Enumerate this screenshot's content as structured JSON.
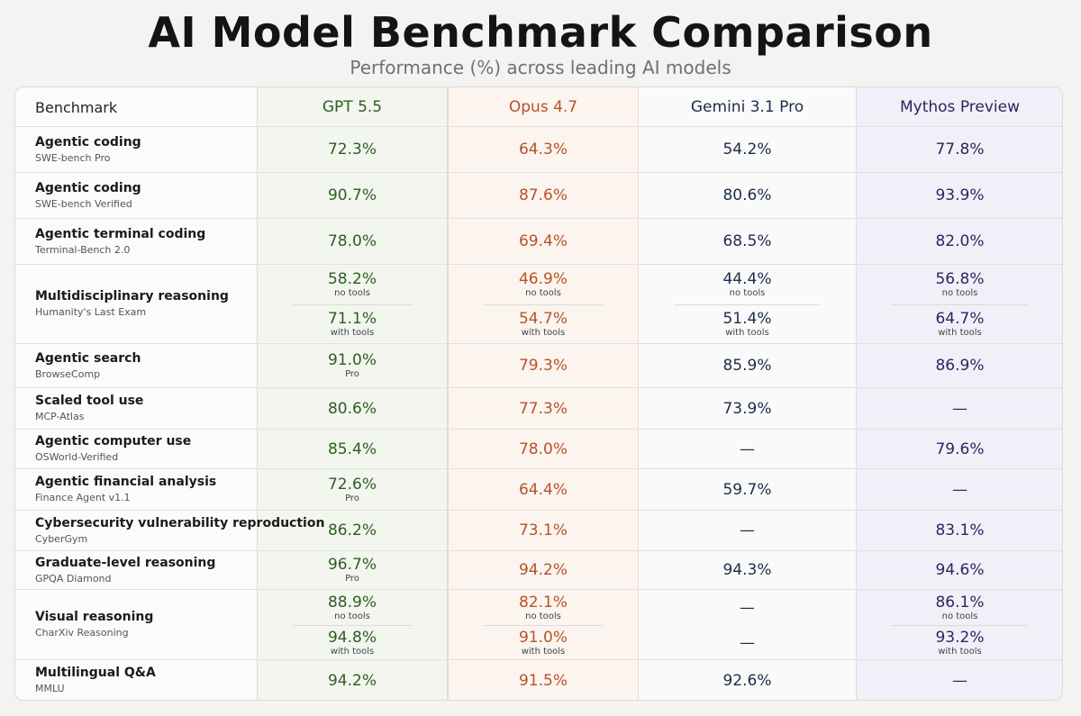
{
  "header": {
    "title": "AI Model Benchmark Comparison",
    "subtitle": "Performance (%) across leading AI models"
  },
  "colors": {
    "gpt": "#2f5d23",
    "opus": "#b5532b",
    "gemini": "#1e2b4a",
    "mythos": "#2b2660"
  },
  "chart_data": {
    "type": "table",
    "title": "AI Model Benchmark Comparison",
    "subtitle": "Performance (%) across leading AI models",
    "columns": [
      "Benchmark",
      "GPT 5.5",
      "Opus 4.7",
      "Gemini 3.1 Pro",
      "Mythos Preview"
    ],
    "rows": [
      {
        "name": "Agentic coding",
        "sub": "SWE-bench Pro",
        "values": [
          {
            "v": "72.3%"
          },
          {
            "v": "64.3%"
          },
          {
            "v": "54.2%"
          },
          {
            "v": "77.8%"
          }
        ]
      },
      {
        "name": "Agentic coding",
        "sub": "SWE-bench Verified",
        "values": [
          {
            "v": "90.7%"
          },
          {
            "v": "87.6%"
          },
          {
            "v": "80.6%"
          },
          {
            "v": "93.9%"
          }
        ]
      },
      {
        "name": "Agentic terminal coding",
        "sub": "Terminal-Bench 2.0",
        "values": [
          {
            "v": "78.0%"
          },
          {
            "v": "69.4%"
          },
          {
            "v": "68.5%"
          },
          {
            "v": "82.0%"
          }
        ]
      },
      {
        "name": "Multidisciplinary reasoning",
        "sub": "Humanity's Last Exam",
        "values": [
          {
            "pair": [
              {
                "v": "58.2%",
                "note": "no tools"
              },
              {
                "v": "71.1%",
                "note": "with tools"
              }
            ]
          },
          {
            "pair": [
              {
                "v": "46.9%",
                "note": "no tools"
              },
              {
                "v": "54.7%",
                "note": "with tools"
              }
            ]
          },
          {
            "pair": [
              {
                "v": "44.4%",
                "note": "no tools"
              },
              {
                "v": "51.4%",
                "note": "with tools"
              }
            ]
          },
          {
            "pair": [
              {
                "v": "56.8%",
                "note": "no tools"
              },
              {
                "v": "64.7%",
                "note": "with tools"
              }
            ]
          }
        ]
      },
      {
        "name": "Agentic search",
        "sub": "BrowseComp",
        "values": [
          {
            "v": "91.0%",
            "note": "Pro"
          },
          {
            "v": "79.3%"
          },
          {
            "v": "85.9%"
          },
          {
            "v": "86.9%"
          }
        ]
      },
      {
        "name": "Scaled tool use",
        "sub": "MCP-Atlas",
        "values": [
          {
            "v": "80.6%"
          },
          {
            "v": "77.3%"
          },
          {
            "v": "73.9%"
          },
          {
            "v": "—"
          }
        ]
      },
      {
        "name": "Agentic computer use",
        "sub": "OSWorld-Verified",
        "values": [
          {
            "v": "85.4%"
          },
          {
            "v": "78.0%"
          },
          {
            "v": "—"
          },
          {
            "v": "79.6%"
          }
        ]
      },
      {
        "name": "Agentic financial analysis",
        "sub": "Finance Agent v1.1",
        "values": [
          {
            "v": "72.6%",
            "note": "Pro"
          },
          {
            "v": "64.4%"
          },
          {
            "v": "59.7%"
          },
          {
            "v": "—"
          }
        ]
      },
      {
        "name": "Cybersecurity vulnerability reproduction",
        "sub": "CyberGym",
        "values": [
          {
            "v": "86.2%"
          },
          {
            "v": "73.1%"
          },
          {
            "v": "—"
          },
          {
            "v": "83.1%"
          }
        ]
      },
      {
        "name": "Graduate-level reasoning",
        "sub": "GPQA Diamond",
        "values": [
          {
            "v": "96.7%",
            "note": "Pro"
          },
          {
            "v": "94.2%"
          },
          {
            "v": "94.3%"
          },
          {
            "v": "94.6%"
          }
        ]
      },
      {
        "name": "Visual reasoning",
        "sub": "CharXiv Reasoning",
        "values": [
          {
            "pair": [
              {
                "v": "88.9%",
                "note": "no tools"
              },
              {
                "v": "94.8%",
                "note": "with tools"
              }
            ]
          },
          {
            "pair": [
              {
                "v": "82.1%",
                "note": "no tools"
              },
              {
                "v": "91.0%",
                "note": "with tools"
              }
            ]
          },
          {
            "pair": [
              {
                "v": "—",
                "note": ""
              },
              {
                "v": "—",
                "note": ""
              }
            ]
          },
          {
            "pair": [
              {
                "v": "86.1%",
                "note": "no tools"
              },
              {
                "v": "93.2%",
                "note": "with tools"
              }
            ]
          }
        ]
      },
      {
        "name": "Multilingual Q&A",
        "sub": "MMLU",
        "values": [
          {
            "v": "94.2%"
          },
          {
            "v": "91.5%"
          },
          {
            "v": "92.6%"
          },
          {
            "v": "—"
          }
        ]
      }
    ]
  }
}
